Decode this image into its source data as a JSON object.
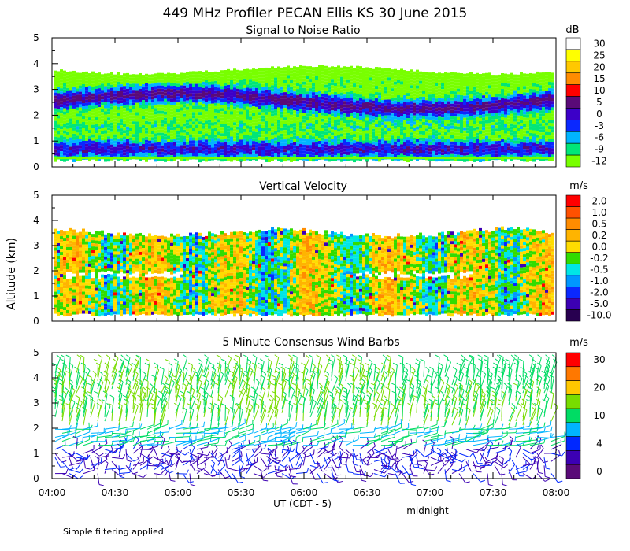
{
  "title": "449 MHz Profiler PECAN Ellis KS 30 June 2015",
  "ylabel": "Altitude (km)",
  "xlabel": "UT (CDT - 5)",
  "midnight_label": "midnight",
  "footnote": "Simple filtering applied",
  "x_ticks": [
    "04:00",
    "04:30",
    "05:00",
    "05:30",
    "06:00",
    "06:30",
    "07:00",
    "07:30",
    "08:00"
  ],
  "chart_data": [
    {
      "type": "heatmap",
      "title": "Signal to Noise Ratio",
      "unit": "dB",
      "xlim": [
        "04:00",
        "08:00"
      ],
      "ylim": [
        0,
        5
      ],
      "y_ticks": [
        0,
        1,
        2,
        3,
        4,
        5
      ],
      "data_extent_km": [
        0.3,
        3.8
      ],
      "scale": [
        {
          "label": "30",
          "color": "#ffffff"
        },
        {
          "label": "25",
          "color": "#ffff00"
        },
        {
          "label": "20",
          "color": "#ffc800"
        },
        {
          "label": "15",
          "color": "#ff8c00"
        },
        {
          "label": "10",
          "color": "#ff0000"
        },
        {
          "label": "5",
          "color": "#5a0a78"
        },
        {
          "label": "0",
          "color": "#3c00c8"
        },
        {
          "label": "-3",
          "color": "#0a28ff"
        },
        {
          "label": "-6",
          "color": "#00b4ff"
        },
        {
          "label": "-9",
          "color": "#00e678"
        },
        {
          "label": "-12",
          "color": "#78ff00"
        }
      ]
    },
    {
      "type": "heatmap",
      "title": "Vertical Velocity",
      "unit": "m/s",
      "xlim": [
        "04:00",
        "08:00"
      ],
      "ylim": [
        0,
        5
      ],
      "y_ticks": [
        0,
        1,
        2,
        3,
        4,
        5
      ],
      "data_extent_km": [
        0.3,
        3.8
      ],
      "scale": [
        {
          "label": "2.0",
          "color": "#ff0000"
        },
        {
          "label": "1.0",
          "color": "#ff5000"
        },
        {
          "label": "0.5",
          "color": "#ff8c00"
        },
        {
          "label": "0.2",
          "color": "#ffb400"
        },
        {
          "label": "0.0",
          "color": "#ffdc00"
        },
        {
          "label": "-0.2",
          "color": "#32dc00"
        },
        {
          "label": "-0.5",
          "color": "#00e6e6"
        },
        {
          "label": "-1.0",
          "color": "#0096ff"
        },
        {
          "label": "-2.0",
          "color": "#0a28ff"
        },
        {
          "label": "-5.0",
          "color": "#3c00b4"
        },
        {
          "label": "-10.0",
          "color": "#280050"
        }
      ]
    },
    {
      "type": "scatter",
      "title": "5 Minute Consensus Wind Barbs",
      "unit": "m/s",
      "xlim": [
        "04:00",
        "08:00"
      ],
      "ylim": [
        0,
        5
      ],
      "y_ticks": [
        0,
        1,
        2,
        3,
        4,
        5
      ],
      "scale": [
        {
          "label": "30",
          "color": "#ff0000"
        },
        {
          "label": "",
          "color": "#ff7800"
        },
        {
          "label": "20",
          "color": "#ffc800"
        },
        {
          "label": "",
          "color": "#78dc00"
        },
        {
          "label": "10",
          "color": "#00dc64"
        },
        {
          "label": "",
          "color": "#00b4ff"
        },
        {
          "label": "4",
          "color": "#0028ff"
        },
        {
          "label": "",
          "color": "#3c00b4"
        },
        {
          "label": "0",
          "color": "#5a0a78"
        }
      ]
    }
  ]
}
